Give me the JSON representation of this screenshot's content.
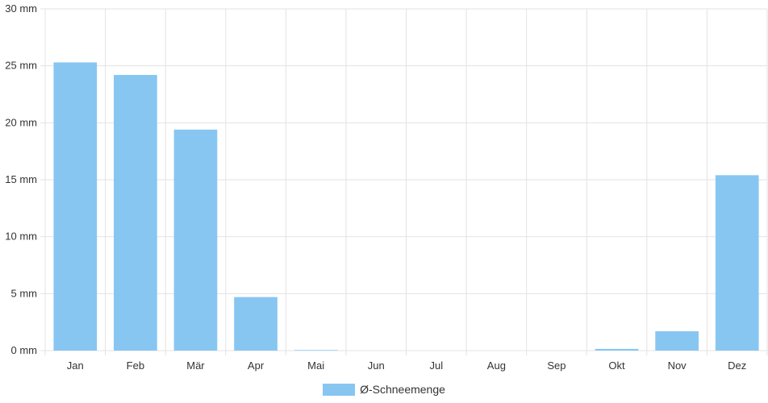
{
  "chart_data": {
    "type": "bar",
    "categories": [
      "Jan",
      "Feb",
      "Mär",
      "Apr",
      "Mai",
      "Jun",
      "Jul",
      "Aug",
      "Sep",
      "Okt",
      "Nov",
      "Dez"
    ],
    "series": [
      {
        "name": "Ø-Schneemenge",
        "values": [
          25.3,
          24.2,
          19.4,
          4.7,
          0.05,
          0,
          0,
          0,
          0,
          0.15,
          1.7,
          15.4
        ],
        "color": "#88c6f2"
      }
    ],
    "y_ticks": [
      "0 mm",
      "5 mm",
      "10 mm",
      "15 mm",
      "20 mm",
      "25 mm",
      "30 mm"
    ],
    "ylim": [
      0,
      30
    ],
    "unit": "mm",
    "grid": true,
    "legend_position": "bottom"
  }
}
